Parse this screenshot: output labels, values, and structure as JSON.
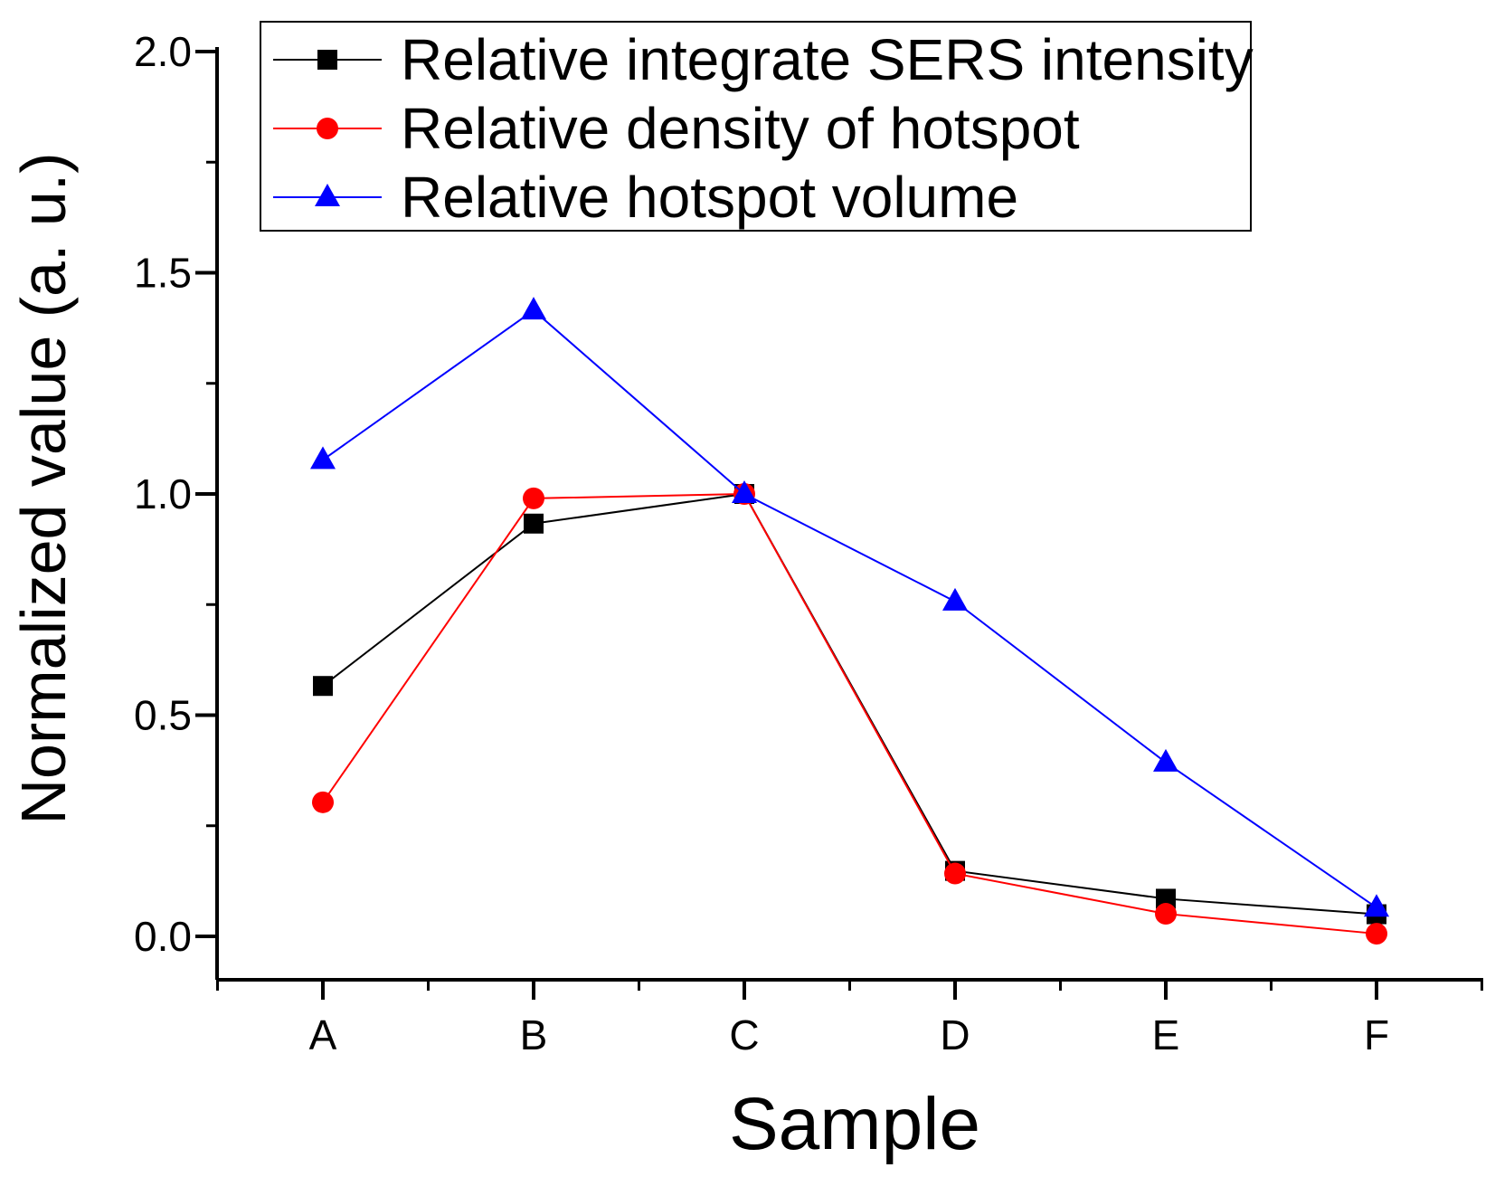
{
  "chart_data": {
    "type": "line",
    "title": "",
    "xlabel": "Sample",
    "ylabel": "Normalized value (a. u.)",
    "categories": [
      "A",
      "B",
      "C",
      "D",
      "E",
      "F"
    ],
    "ylim": [
      -0.1,
      2.0
    ],
    "yticks": [
      "0.0",
      "0.5",
      "1.0",
      "1.5",
      "2.0"
    ],
    "ytick_values": [
      0.0,
      0.5,
      1.0,
      1.5,
      2.0
    ],
    "grid": false,
    "legend_position": "top",
    "series": [
      {
        "name": "Relative integrate SERS intensity",
        "color": "#000000",
        "marker": "square",
        "values": [
          0.566,
          0.933,
          1.0,
          0.148,
          0.085,
          0.05
        ]
      },
      {
        "name": "Relative density of hotspot",
        "color": "#ff0000",
        "marker": "circle",
        "values": [
          0.303,
          0.99,
          1.0,
          0.142,
          0.051,
          0.006
        ]
      },
      {
        "name": "Relative hotspot volume",
        "color": "#0000ff",
        "marker": "triangle",
        "values": [
          1.077,
          1.415,
          1.0,
          0.757,
          0.393,
          0.065
        ]
      }
    ]
  }
}
